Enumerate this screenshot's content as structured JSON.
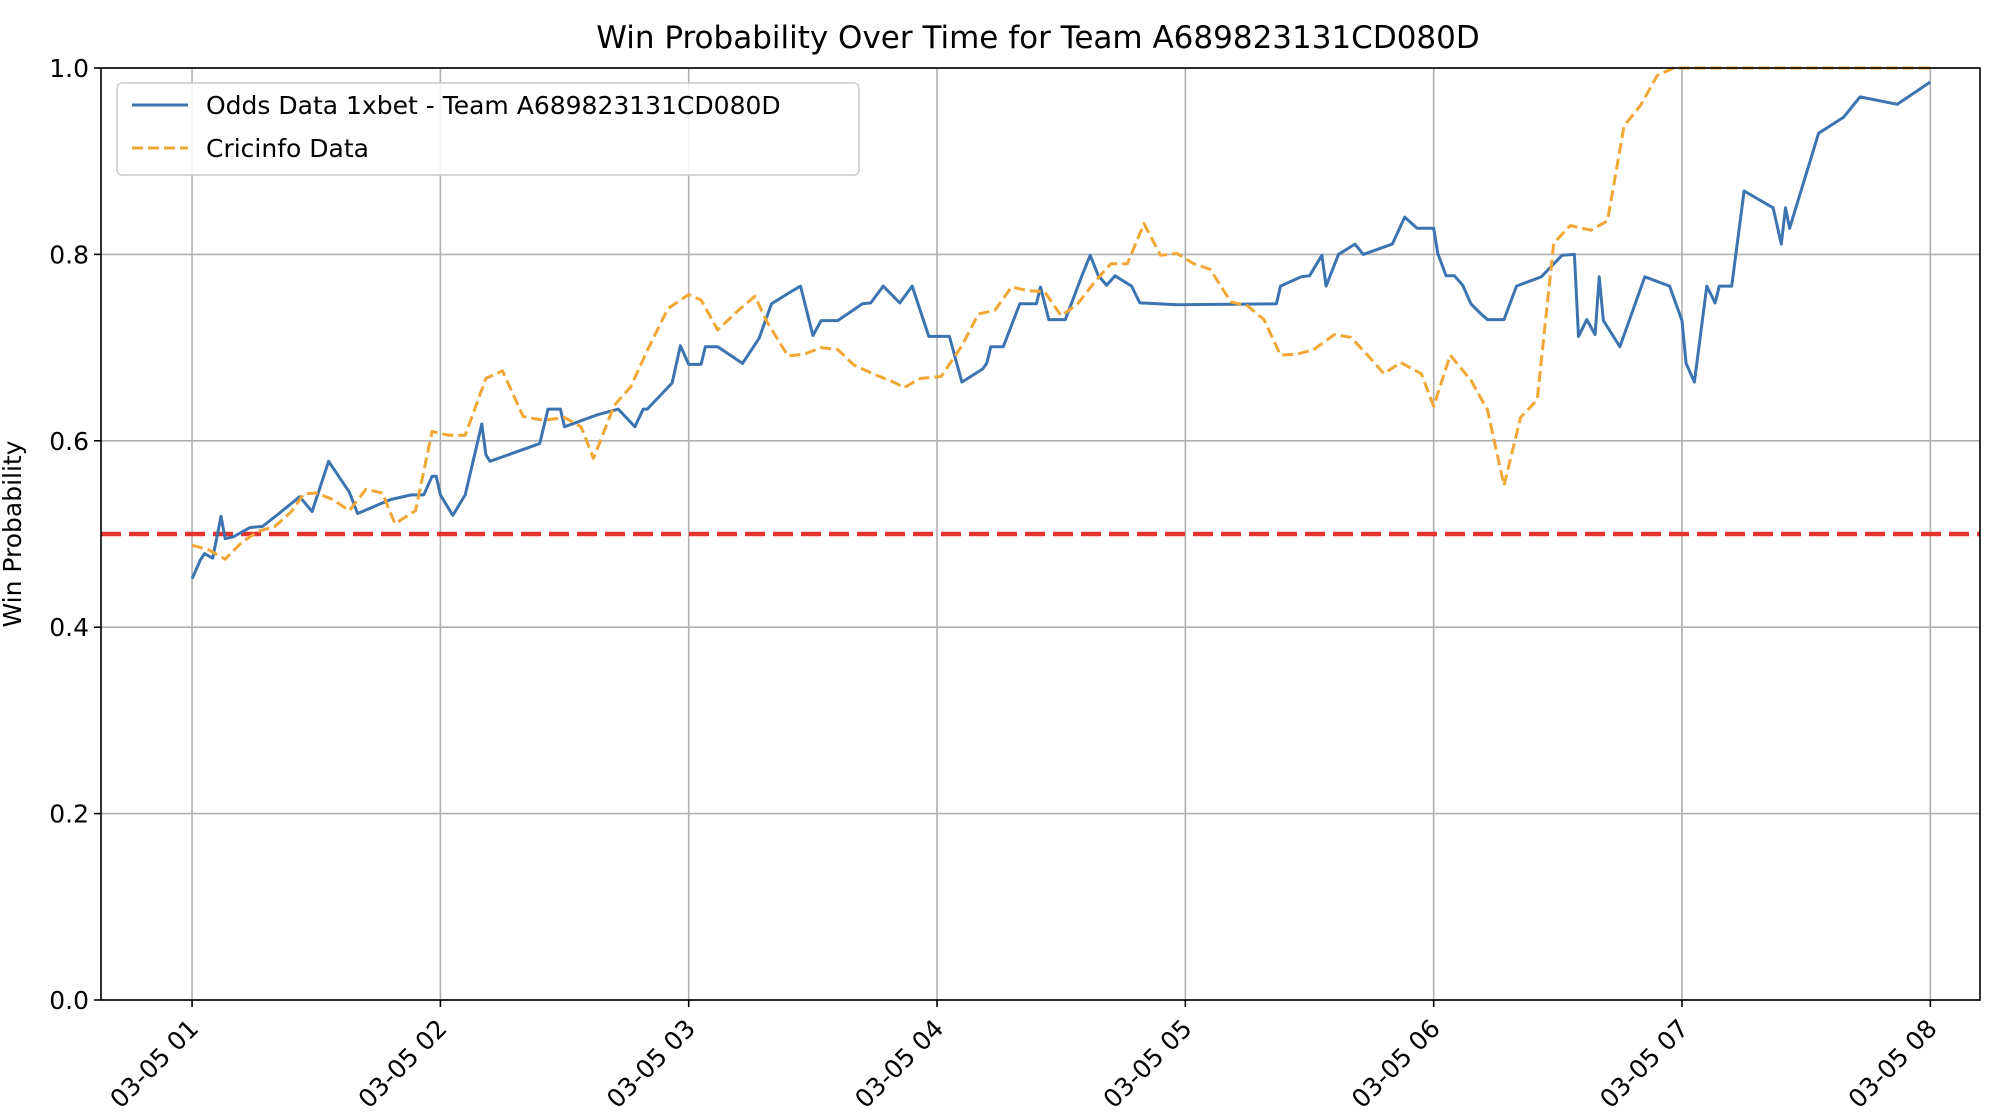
{
  "chart_data": {
    "type": "line",
    "title": "Win Probability Over Time for Team A689823131CD080D",
    "xlabel": "",
    "ylabel": "Win Probability",
    "xlim": [
      "03-05 00:38",
      "03-05 08:12"
    ],
    "ylim": [
      0,
      1
    ],
    "x_ticks": [
      "03-05 01",
      "03-05 02",
      "03-05 03",
      "03-05 04",
      "03-05 05",
      "03-05 06",
      "03-05 07",
      "03-05 08"
    ],
    "y_ticks": [
      "0.0",
      "0.2",
      "0.4",
      "0.6",
      "0.8",
      "1.0"
    ],
    "grid": true,
    "legend_position": "top-left",
    "reference_line": {
      "y": 0.5,
      "color": "#e3342f",
      "style": "dashed"
    },
    "series": [
      {
        "name": "Odds Data 1xbet - Team A689823131CD080D",
        "color": "#3b74b0",
        "style": "solid",
        "points": [
          [
            "03-05 01:00",
            0.452
          ],
          [
            "03-05 01:02",
            0.472
          ],
          [
            "03-05 01:03",
            0.479
          ],
          [
            "03-05 01:05",
            0.474
          ],
          [
            "03-05 01:07",
            0.519
          ],
          [
            "03-05 01:08",
            0.495
          ],
          [
            "03-05 01:10",
            0.497
          ],
          [
            "03-05 01:14",
            0.507
          ],
          [
            "03-05 01:17",
            0.508
          ],
          [
            "03-05 01:21",
            0.522
          ],
          [
            "03-05 01:26",
            0.54
          ],
          [
            "03-05 01:29",
            0.524
          ],
          [
            "03-05 01:33",
            0.578
          ],
          [
            "03-05 01:38",
            0.545
          ],
          [
            "03-05 01:40",
            0.522
          ],
          [
            "03-05 01:48",
            0.537
          ],
          [
            "03-05 01:53",
            0.542
          ],
          [
            "03-05 01:56",
            0.542
          ],
          [
            "03-05 01:58",
            0.562
          ],
          [
            "03-05 01:59",
            0.562
          ],
          [
            "03-05 02:00",
            0.542
          ],
          [
            "03-05 02:03",
            0.52
          ],
          [
            "03-05 02:06",
            0.542
          ],
          [
            "03-05 02:10",
            0.618
          ],
          [
            "03-05 02:11",
            0.585
          ],
          [
            "03-05 02:12",
            0.578
          ],
          [
            "03-05 02:24",
            0.597
          ],
          [
            "03-05 02:26",
            0.634
          ],
          [
            "03-05 02:29",
            0.634
          ],
          [
            "03-05 02:30",
            0.615
          ],
          [
            "03-05 02:38",
            0.628
          ],
          [
            "03-05 02:43",
            0.634
          ],
          [
            "03-05 02:47",
            0.615
          ],
          [
            "03-05 02:49",
            0.634
          ],
          [
            "03-05 02:50",
            0.634
          ],
          [
            "03-05 02:56",
            0.662
          ],
          [
            "03-05 02:58",
            0.702
          ],
          [
            "03-05 03:00",
            0.682
          ],
          [
            "03-05 03:03",
            0.682
          ],
          [
            "03-05 03:04",
            0.701
          ],
          [
            "03-05 03:07",
            0.701
          ],
          [
            "03-05 03:13",
            0.683
          ],
          [
            "03-05 03:17",
            0.71
          ],
          [
            "03-05 03:20",
            0.747
          ],
          [
            "03-05 03:24",
            0.758
          ],
          [
            "03-05 03:27",
            0.766
          ],
          [
            "03-05 03:30",
            0.713
          ],
          [
            "03-05 03:32",
            0.729
          ],
          [
            "03-05 03:36",
            0.729
          ],
          [
            "03-05 03:42",
            0.747
          ],
          [
            "03-05 03:44",
            0.748
          ],
          [
            "03-05 03:47",
            0.766
          ],
          [
            "03-05 03:51",
            0.748
          ],
          [
            "03-05 03:54",
            0.766
          ],
          [
            "03-05 03:58",
            0.712
          ],
          [
            "03-05 04:03",
            0.712
          ],
          [
            "03-05 04:06",
            0.663
          ],
          [
            "03-05 04:11",
            0.677
          ],
          [
            "03-05 04:12",
            0.683
          ],
          [
            "03-05 04:13",
            0.701
          ],
          [
            "03-05 04:16",
            0.701
          ],
          [
            "03-05 04:20",
            0.747
          ],
          [
            "03-05 04:24",
            0.747
          ],
          [
            "03-05 04:25",
            0.765
          ],
          [
            "03-05 04:27",
            0.73
          ],
          [
            "03-05 04:31",
            0.73
          ],
          [
            "03-05 04:35",
            0.777
          ],
          [
            "03-05 04:37",
            0.799
          ],
          [
            "03-05 04:39",
            0.777
          ],
          [
            "03-05 04:41",
            0.767
          ],
          [
            "03-05 04:43",
            0.777
          ],
          [
            "03-05 04:47",
            0.766
          ],
          [
            "03-05 04:49",
            0.748
          ],
          [
            "03-05 04:58",
            0.746
          ],
          [
            "03-05 05:22",
            0.747
          ],
          [
            "03-05 05:23",
            0.766
          ],
          [
            "03-05 05:28",
            0.776
          ],
          [
            "03-05 05:30",
            0.777
          ],
          [
            "03-05 05:33",
            0.799
          ],
          [
            "03-05 05:34",
            0.766
          ],
          [
            "03-05 05:37",
            0.8
          ],
          [
            "03-05 05:41",
            0.811
          ],
          [
            "03-05 05:43",
            0.8
          ],
          [
            "03-05 05:50",
            0.811
          ],
          [
            "03-05 05:53",
            0.84
          ],
          [
            "03-05 05:56",
            0.828
          ],
          [
            "03-05 06:00",
            0.828
          ],
          [
            "03-05 06:01",
            0.801
          ],
          [
            "03-05 06:03",
            0.777
          ],
          [
            "03-05 06:05",
            0.777
          ],
          [
            "03-05 06:07",
            0.767
          ],
          [
            "03-05 06:09",
            0.747
          ],
          [
            "03-05 06:11",
            0.738
          ],
          [
            "03-05 06:13",
            0.73
          ],
          [
            "03-05 06:17",
            0.73
          ],
          [
            "03-05 06:20",
            0.766
          ],
          [
            "03-05 06:26",
            0.776
          ],
          [
            "03-05 06:31",
            0.799
          ],
          [
            "03-05 06:34",
            0.8
          ],
          [
            "03-05 06:35",
            0.712
          ],
          [
            "03-05 06:37",
            0.73
          ],
          [
            "03-05 06:39",
            0.714
          ],
          [
            "03-05 06:40",
            0.776
          ],
          [
            "03-05 06:41",
            0.729
          ],
          [
            "03-05 06:45",
            0.701
          ],
          [
            "03-05 06:51",
            0.776
          ],
          [
            "03-05 06:57",
            0.766
          ],
          [
            "03-05 07:00",
            0.729
          ],
          [
            "03-05 07:01",
            0.683
          ],
          [
            "03-05 07:03",
            0.663
          ],
          [
            "03-05 07:06",
            0.766
          ],
          [
            "03-05 07:08",
            0.748
          ],
          [
            "03-05 07:09",
            0.766
          ],
          [
            "03-05 07:12",
            0.766
          ],
          [
            "03-05 07:15",
            0.868
          ],
          [
            "03-05 07:22",
            0.85
          ],
          [
            "03-05 07:24",
            0.811
          ],
          [
            "03-05 07:25",
            0.85
          ],
          [
            "03-05 07:26",
            0.828
          ],
          [
            "03-05 07:33",
            0.93
          ],
          [
            "03-05 07:39",
            0.947
          ],
          [
            "03-05 07:43",
            0.969
          ],
          [
            "03-05 07:52",
            0.961
          ],
          [
            "03-05 08:00",
            0.985
          ]
        ]
      },
      {
        "name": "Cricinfo Data",
        "color": "#f2a634",
        "style": "dashed",
        "points": [
          [
            "03-05 01:00",
            0.488
          ],
          [
            "03-05 01:04",
            0.483
          ],
          [
            "03-05 01:08",
            0.473
          ],
          [
            "03-05 01:12",
            0.491
          ],
          [
            "03-05 01:16",
            0.503
          ],
          [
            "03-05 01:20",
            0.508
          ],
          [
            "03-05 01:24",
            0.524
          ],
          [
            "03-05 01:27",
            0.543
          ],
          [
            "03-05 01:30",
            0.544
          ],
          [
            "03-05 01:34",
            0.537
          ],
          [
            "03-05 01:38",
            0.525
          ],
          [
            "03-05 01:42",
            0.548
          ],
          [
            "03-05 01:46",
            0.544
          ],
          [
            "03-05 01:49",
            0.511
          ],
          [
            "03-05 01:54",
            0.525
          ],
          [
            "03-05 01:58",
            0.61
          ],
          [
            "03-05 02:02",
            0.606
          ],
          [
            "03-05 02:06",
            0.606
          ],
          [
            "03-05 02:11",
            0.667
          ],
          [
            "03-05 02:15",
            0.675
          ],
          [
            "03-05 02:20",
            0.626
          ],
          [
            "03-05 02:25",
            0.622
          ],
          [
            "03-05 02:30",
            0.625
          ],
          [
            "03-05 02:34",
            0.615
          ],
          [
            "03-05 02:37",
            0.581
          ],
          [
            "03-05 02:42",
            0.638
          ],
          [
            "03-05 02:46",
            0.658
          ],
          [
            "03-05 02:50",
            0.697
          ],
          [
            "03-05 02:55",
            0.742
          ],
          [
            "03-05 03:00",
            0.757
          ],
          [
            "03-05 03:03",
            0.751
          ],
          [
            "03-05 03:07",
            0.719
          ],
          [
            "03-05 03:12",
            0.74
          ],
          [
            "03-05 03:16",
            0.755
          ],
          [
            "03-05 03:19",
            0.727
          ],
          [
            "03-05 03:24",
            0.691
          ],
          [
            "03-05 03:28",
            0.693
          ],
          [
            "03-05 03:32",
            0.7
          ],
          [
            "03-05 03:36",
            0.698
          ],
          [
            "03-05 03:40",
            0.681
          ],
          [
            "03-05 03:45",
            0.671
          ],
          [
            "03-05 03:50",
            0.662
          ],
          [
            "03-05 03:52",
            0.657
          ],
          [
            "03-05 03:56",
            0.667
          ],
          [
            "03-05 04:01",
            0.669
          ],
          [
            "03-05 04:06",
            0.702
          ],
          [
            "03-05 04:10",
            0.736
          ],
          [
            "03-05 04:14",
            0.74
          ],
          [
            "03-05 04:18",
            0.765
          ],
          [
            "03-05 04:22",
            0.761
          ],
          [
            "03-05 04:26",
            0.76
          ],
          [
            "03-05 04:30",
            0.734
          ],
          [
            "03-05 04:34",
            0.747
          ],
          [
            "03-05 04:38",
            0.77
          ],
          [
            "03-05 04:42",
            0.79
          ],
          [
            "03-05 04:46",
            0.79
          ],
          [
            "03-05 04:50",
            0.833
          ],
          [
            "03-05 04:54",
            0.799
          ],
          [
            "03-05 04:58",
            0.801
          ],
          [
            "03-05 05:02",
            0.79
          ],
          [
            "03-05 05:06",
            0.784
          ],
          [
            "03-05 05:11",
            0.749
          ],
          [
            "03-05 05:15",
            0.745
          ],
          [
            "03-05 05:19",
            0.73
          ],
          [
            "03-05 05:23",
            0.692
          ],
          [
            "03-05 05:27",
            0.693
          ],
          [
            "03-05 05:31",
            0.698
          ],
          [
            "03-05 05:36",
            0.714
          ],
          [
            "03-05 05:40",
            0.711
          ],
          [
            "03-05 05:44",
            0.692
          ],
          [
            "03-05 05:48",
            0.672
          ],
          [
            "03-05 05:52",
            0.684
          ],
          [
            "03-05 05:57",
            0.672
          ],
          [
            "03-05 06:00",
            0.637
          ],
          [
            "03-05 06:04",
            0.692
          ],
          [
            "03-05 06:09",
            0.665
          ],
          [
            "03-05 06:13",
            0.633
          ],
          [
            "03-05 06:17",
            0.552
          ],
          [
            "03-05 06:21",
            0.625
          ],
          [
            "03-05 06:25",
            0.644
          ],
          [
            "03-05 06:29",
            0.812
          ],
          [
            "03-05 06:33",
            0.831
          ],
          [
            "03-05 06:38",
            0.826
          ],
          [
            "03-05 06:42",
            0.836
          ],
          [
            "03-05 06:46",
            0.938
          ],
          [
            "03-05 06:50",
            0.96
          ],
          [
            "03-05 06:54",
            0.992
          ],
          [
            "03-05 06:58",
            1.0
          ],
          [
            "03-05 07:15",
            1.0
          ],
          [
            "03-05 07:40",
            1.0
          ],
          [
            "03-05 08:00",
            1.0
          ]
        ]
      }
    ]
  }
}
